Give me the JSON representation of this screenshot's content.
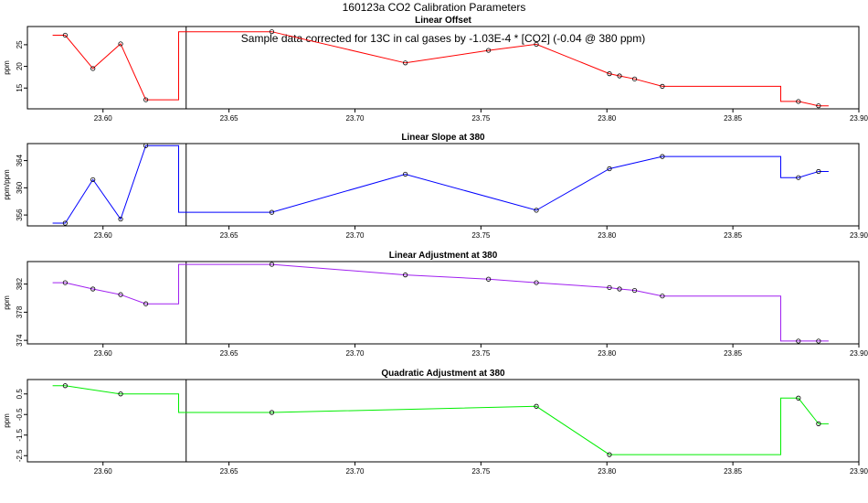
{
  "figure": {
    "title": "160123a   CO2 Calibration Parameters",
    "note": "Sample data corrected for 13C in cal gases by -1.03E-4 * [CO2] (-0.04 @ 380 ppm)",
    "vline_x": 23.633
  },
  "chart_data": [
    {
      "type": "line",
      "title": "Linear Offset",
      "xlabel": "",
      "ylabel": "ppm",
      "xlim": [
        23.57,
        23.9
      ],
      "ylim": [
        10.2,
        29.2
      ],
      "xticks": [
        23.6,
        23.65,
        23.7,
        23.75,
        23.8,
        23.85,
        23.9
      ],
      "yticks": [
        15,
        20,
        25
      ],
      "color": "#ff0000",
      "points": [
        [
          23.585,
          27.2
        ],
        [
          23.596,
          19.5
        ],
        [
          23.607,
          25.2
        ],
        [
          23.617,
          12.3
        ],
        [
          23.667,
          28.0
        ],
        [
          23.72,
          20.8
        ],
        [
          23.753,
          23.7
        ],
        [
          23.772,
          25.1
        ],
        [
          23.801,
          18.3
        ],
        [
          23.805,
          17.8
        ],
        [
          23.811,
          17.1
        ],
        [
          23.822,
          15.4
        ],
        [
          23.876,
          11.9
        ],
        [
          23.884,
          10.9
        ]
      ],
      "line": [
        [
          23.58,
          27.2
        ],
        [
          23.585,
          27.2
        ],
        [
          23.596,
          19.5
        ],
        [
          23.607,
          25.2
        ],
        [
          23.617,
          12.3
        ],
        [
          23.63,
          12.3
        ],
        [
          23.63,
          28.0
        ],
        [
          23.667,
          28.0
        ],
        [
          23.72,
          20.8
        ],
        [
          23.753,
          23.7
        ],
        [
          23.772,
          25.1
        ],
        [
          23.801,
          18.3
        ],
        [
          23.805,
          17.8
        ],
        [
          23.811,
          17.1
        ],
        [
          23.822,
          15.4
        ],
        [
          23.869,
          15.4
        ],
        [
          23.869,
          11.9
        ],
        [
          23.876,
          11.9
        ],
        [
          23.884,
          10.9
        ],
        [
          23.888,
          10.9
        ]
      ]
    },
    {
      "type": "line",
      "title": "Linear Slope at 380",
      "xlabel": "",
      "ylabel": "ppm/ppm",
      "xlim": [
        23.57,
        23.9
      ],
      "ylim": [
        354.4,
        366.5
      ],
      "xticks": [
        23.6,
        23.65,
        23.7,
        23.75,
        23.8,
        23.85,
        23.9
      ],
      "yticks": [
        356,
        360,
        364
      ],
      "color": "#0000ff",
      "points": [
        [
          23.585,
          354.8
        ],
        [
          23.596,
          361.2
        ],
        [
          23.607,
          355.4
        ],
        [
          23.617,
          366.2
        ],
        [
          23.667,
          356.4
        ],
        [
          23.72,
          362.0
        ],
        [
          23.772,
          356.7
        ],
        [
          23.801,
          362.8
        ],
        [
          23.822,
          364.6
        ],
        [
          23.876,
          361.5
        ],
        [
          23.884,
          362.4
        ]
      ],
      "line": [
        [
          23.58,
          354.8
        ],
        [
          23.585,
          354.8
        ],
        [
          23.596,
          361.2
        ],
        [
          23.607,
          355.4
        ],
        [
          23.617,
          366.2
        ],
        [
          23.63,
          366.2
        ],
        [
          23.63,
          356.4
        ],
        [
          23.667,
          356.4
        ],
        [
          23.72,
          362.0
        ],
        [
          23.772,
          356.7
        ],
        [
          23.801,
          362.8
        ],
        [
          23.822,
          364.6
        ],
        [
          23.869,
          364.6
        ],
        [
          23.869,
          361.5
        ],
        [
          23.876,
          361.5
        ],
        [
          23.884,
          362.4
        ],
        [
          23.888,
          362.4
        ]
      ]
    },
    {
      "type": "line",
      "title": "Linear Adjustment at 380",
      "xlabel": "",
      "ylabel": "ppm",
      "xlim": [
        23.57,
        23.9
      ],
      "ylim": [
        373.5,
        385.2
      ],
      "xticks": [
        23.6,
        23.65,
        23.7,
        23.75,
        23.8,
        23.85,
        23.9
      ],
      "yticks": [
        374,
        378,
        382
      ],
      "color": "#a020f0",
      "points": [
        [
          23.585,
          382.2
        ],
        [
          23.596,
          381.3
        ],
        [
          23.607,
          380.5
        ],
        [
          23.617,
          379.2
        ],
        [
          23.667,
          384.8
        ],
        [
          23.72,
          383.3
        ],
        [
          23.753,
          382.7
        ],
        [
          23.772,
          382.2
        ],
        [
          23.801,
          381.5
        ],
        [
          23.805,
          381.3
        ],
        [
          23.811,
          381.1
        ],
        [
          23.822,
          380.3
        ],
        [
          23.876,
          373.9
        ],
        [
          23.884,
          373.9
        ]
      ],
      "line": [
        [
          23.58,
          382.2
        ],
        [
          23.585,
          382.2
        ],
        [
          23.596,
          381.3
        ],
        [
          23.607,
          380.5
        ],
        [
          23.617,
          379.2
        ],
        [
          23.63,
          379.2
        ],
        [
          23.63,
          384.8
        ],
        [
          23.667,
          384.8
        ],
        [
          23.72,
          383.3
        ],
        [
          23.753,
          382.7
        ],
        [
          23.772,
          382.2
        ],
        [
          23.801,
          381.5
        ],
        [
          23.805,
          381.3
        ],
        [
          23.811,
          381.1
        ],
        [
          23.822,
          380.3
        ],
        [
          23.869,
          380.3
        ],
        [
          23.869,
          373.9
        ],
        [
          23.876,
          373.9
        ],
        [
          23.884,
          373.9
        ],
        [
          23.888,
          373.9
        ]
      ]
    },
    {
      "type": "line",
      "title": "Quadratic Adjustment at 380",
      "xlabel": "",
      "ylabel": "ppm",
      "xlim": [
        23.57,
        23.9
      ],
      "ylim": [
        -2.8,
        1.2
      ],
      "xticks": [
        23.6,
        23.65,
        23.7,
        23.75,
        23.8,
        23.85,
        23.9
      ],
      "yticks": [
        -2.5,
        -1.5,
        -0.5,
        0.5
      ],
      "color": "#00ee00",
      "points": [
        [
          23.585,
          0.9
        ],
        [
          23.607,
          0.5
        ],
        [
          23.667,
          -0.4
        ],
        [
          23.772,
          -0.1
        ],
        [
          23.801,
          -2.45
        ],
        [
          23.876,
          0.3
        ],
        [
          23.884,
          -0.95
        ]
      ],
      "line": [
        [
          23.58,
          0.9
        ],
        [
          23.585,
          0.9
        ],
        [
          23.607,
          0.5
        ],
        [
          23.63,
          0.5
        ],
        [
          23.63,
          -0.4
        ],
        [
          23.667,
          -0.4
        ],
        [
          23.772,
          -0.1
        ],
        [
          23.801,
          -2.45
        ],
        [
          23.869,
          -2.45
        ],
        [
          23.869,
          0.3
        ],
        [
          23.876,
          0.3
        ],
        [
          23.884,
          -0.95
        ],
        [
          23.888,
          -0.95
        ]
      ]
    }
  ]
}
